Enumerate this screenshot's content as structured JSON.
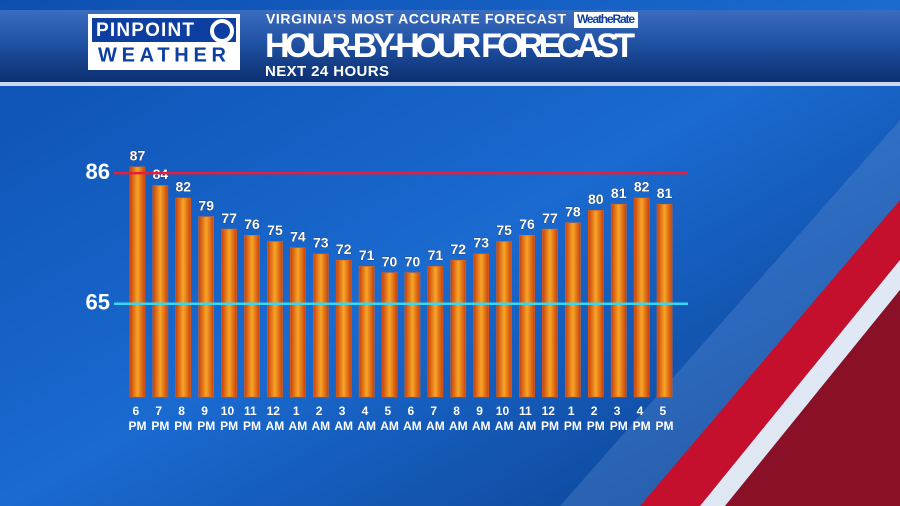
{
  "header": {
    "brand_top": "PINPOINT",
    "brand_bottom": "WEATHER",
    "tagline": "VIRGINIA'S MOST ACCURATE FORECAST",
    "badge": "WeatheRate"
  },
  "chart_data": {
    "type": "bar",
    "title": "HOUR-BY-HOUR FORECAST",
    "subtitle": "NEXT 24 HOURS",
    "categories": [
      "6 PM",
      "7 PM",
      "8 PM",
      "9 PM",
      "10 PM",
      "11 PM",
      "12 AM",
      "1 AM",
      "2 AM",
      "3 AM",
      "4 AM",
      "5 AM",
      "6 AM",
      "7 AM",
      "8 AM",
      "9 AM",
      "10 AM",
      "11 AM",
      "12 PM",
      "1 PM",
      "2 PM",
      "3 PM",
      "4 PM",
      "5 PM"
    ],
    "values": [
      87,
      84,
      82,
      79,
      77,
      76,
      75,
      74,
      73,
      72,
      71,
      70,
      70,
      71,
      72,
      73,
      75,
      76,
      77,
      78,
      80,
      81,
      82,
      81
    ],
    "color": "#e8661c",
    "ylim": [
      50,
      100
    ],
    "yticks": [
      65,
      86
    ],
    "tick_line_colors": [
      "#38d8f0",
      "#e2203c"
    ]
  }
}
